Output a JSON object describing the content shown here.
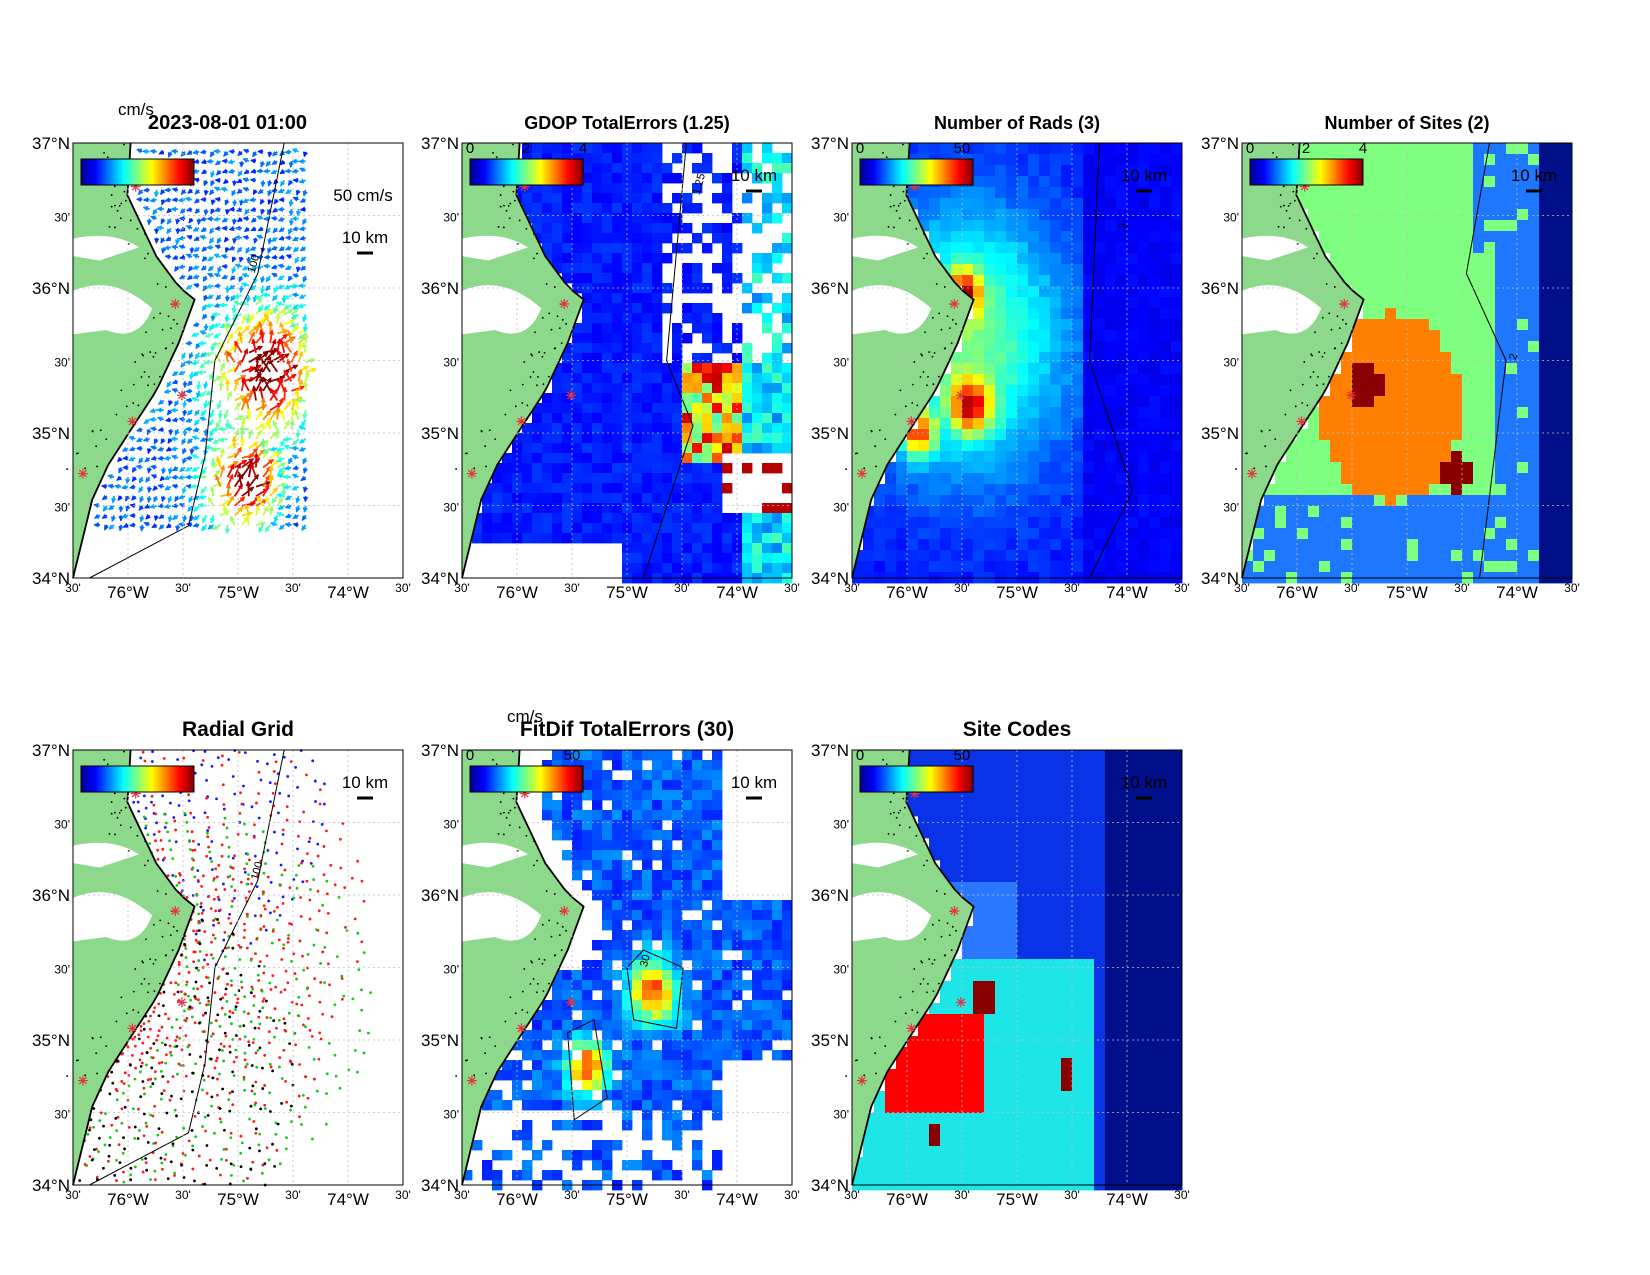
{
  "figure": {
    "timestamp": "2023-08-01 01:00",
    "panels": [
      {
        "id": "surface-currents",
        "title": "",
        "cbar_unit": "cm/s",
        "cbar_ticks": [],
        "scale_vector_label": "50 cm/s",
        "scale_bar_label": "10 km",
        "contour_label": "100"
      },
      {
        "id": "gdop-total-errors",
        "title": "GDOP TotalErrors (1.25)",
        "cbar_unit": "",
        "cbar_ticks": [
          "0",
          "2",
          "4"
        ],
        "scale_bar_label": "10 km",
        "contour_label": "1.25"
      },
      {
        "id": "number-of-rads",
        "title": "Number of Rads (3)",
        "cbar_unit": "",
        "cbar_ticks": [
          "0",
          "50"
        ],
        "scale_bar_label": "10 km",
        "contour_label": "3"
      },
      {
        "id": "number-of-sites",
        "title": "Number of Sites (2)",
        "cbar_unit": "",
        "cbar_ticks": [
          "0",
          "2",
          "4"
        ],
        "scale_bar_label": "10 km",
        "contour_label": "2"
      },
      {
        "id": "radial-grid",
        "title": "Radial Grid",
        "cbar_unit": "",
        "cbar_ticks": [],
        "scale_bar_label": "10 km",
        "contour_label": "100"
      },
      {
        "id": "fitdif-total-errors",
        "title": "FitDif TotalErrors (30)",
        "cbar_unit": "cm/s",
        "cbar_ticks": [
          "0",
          "50"
        ],
        "scale_bar_label": "10 km",
        "contour_label": "30"
      },
      {
        "id": "site-codes",
        "title": "Site Codes",
        "cbar_unit": "",
        "cbar_ticks": [
          "0",
          "50"
        ],
        "scale_bar_label": "10 km",
        "contour_label": ""
      }
    ],
    "axes": {
      "lat_labels": [
        "37°N",
        "30'",
        "36°N",
        "30'",
        "35°N",
        "30'",
        "34°N"
      ],
      "lon_labels": [
        "30'",
        "76°W",
        "30'",
        "75°W",
        "30'",
        "74°W",
        "30'"
      ]
    },
    "colors": {
      "land": "#8cd98c",
      "coast": "#000000",
      "site": "#e8323c",
      "grid": "#bfbfbf"
    }
  }
}
